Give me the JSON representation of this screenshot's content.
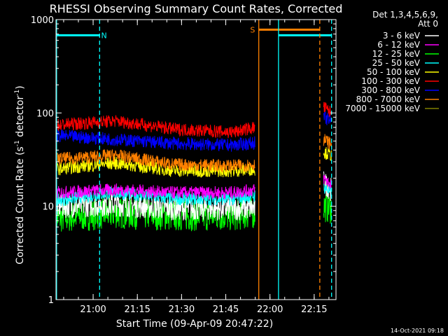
{
  "chart_data": {
    "type": "line",
    "title": "RHESSI Observing Summary Count Rates, Corrected",
    "xlabel": "Start Time (09-Apr-09 20:47:22)",
    "ylabel_main": "Corrected Count Rate (s",
    "ylabel_sup1": "-1",
    "ylabel_mid": " detector",
    "ylabel_sup2": "-1",
    "ylabel_end": ")",
    "y_scale": "log",
    "ylim": [
      1,
      1000
    ],
    "y_ticks": [
      {
        "value": 1,
        "label": "1"
      },
      {
        "value": 10,
        "label": "10"
      },
      {
        "value": 100,
        "label": "100"
      },
      {
        "value": 1000,
        "label": "1000"
      }
    ],
    "x_units": "minutes after 20:47:22",
    "xlim": [
      0,
      95
    ],
    "x_ticks": [
      {
        "value": 12.6,
        "label": "21:00"
      },
      {
        "value": 27.6,
        "label": "21:15"
      },
      {
        "value": 42.6,
        "label": "21:30"
      },
      {
        "value": 57.6,
        "label": "21:45"
      },
      {
        "value": 72.6,
        "label": "22:00"
      },
      {
        "value": 87.6,
        "label": "22:15"
      }
    ],
    "legend_title_line1": "Det 1,3,4,5,6,9,",
    "legend_title_line2": "Att 0",
    "legend_position": "top-right, outside plot",
    "series": [
      {
        "name": "3 - 6 keV",
        "color": "#ffffff",
        "segments": [
          {
            "x": [
              0,
              20,
              40,
              60,
              67.5
            ],
            "y": [
              10,
              10.5,
              9.5,
              9.5,
              9.5
            ]
          },
          {
            "x": [
              90.8,
              93.5
            ],
            "y": [
              18,
              15
            ]
          }
        ]
      },
      {
        "name": "6 - 12 keV",
        "color": "#ff00ff",
        "segments": [
          {
            "x": [
              0,
              20,
              40,
              60,
              67.5
            ],
            "y": [
              14,
              15,
              14,
              14,
              15
            ]
          },
          {
            "x": [
              90.8,
              93.5
            ],
            "y": [
              20,
              17
            ]
          }
        ]
      },
      {
        "name": "12 - 25 keV",
        "color": "#00ff00",
        "segments": [
          {
            "x": [
              0,
              20,
              40,
              60,
              67.5
            ],
            "y": [
              7.5,
              8.5,
              8,
              8,
              8.5
            ]
          },
          {
            "x": [
              90.8,
              93.5
            ],
            "y": [
              10,
              9.5
            ]
          }
        ]
      },
      {
        "name": "25 - 50 keV",
        "color": "#00ffff",
        "segments": [
          {
            "x": [
              0,
              20,
              40,
              60,
              67.5
            ],
            "y": [
              11.5,
              14,
              12,
              12,
              13
            ]
          },
          {
            "x": [
              90.8,
              93.5
            ],
            "y": [
              16,
              14
            ]
          }
        ]
      },
      {
        "name": "50 - 100 keV",
        "color": "#ffff00",
        "segments": [
          {
            "x": [
              0,
              20,
              40,
              60,
              67.5
            ],
            "y": [
              25,
              29,
              24,
              24,
              25
            ]
          },
          {
            "x": [
              90.8,
              93.5
            ],
            "y": [
              38,
              35
            ]
          }
        ]
      },
      {
        "name": "100 - 300 keV",
        "color": "#ff0000",
        "segments": [
          {
            "x": [
              0,
              20,
              40,
              60,
              67.5
            ],
            "y": [
              74,
              82,
              67,
              62,
              70
            ]
          },
          {
            "x": [
              90.8,
              93.5
            ],
            "y": [
              115,
              100
            ]
          }
        ]
      },
      {
        "name": "300 - 800 keV",
        "color": "#0000ff",
        "segments": [
          {
            "x": [
              0,
              20,
              40,
              60,
              67.5
            ],
            "y": [
              57,
              52,
              47,
              45,
              48
            ]
          },
          {
            "x": [
              90.8,
              93.5
            ],
            "y": [
              90,
              80
            ]
          }
        ]
      },
      {
        "name": "800 - 7000 keV",
        "color": "#ff8000",
        "segments": [
          {
            "x": [
              0,
              20,
              40,
              60,
              67.5
            ],
            "y": [
              32,
              35,
              28,
              27,
              28
            ]
          },
          {
            "x": [
              90.8,
              93.5
            ],
            "y": [
              52,
              46
            ]
          }
        ]
      },
      {
        "name": "7000 - 15000 keV",
        "color": "#808000",
        "segments": []
      }
    ],
    "attenuator_bars": [
      {
        "color": "#00ffff",
        "x": [
          0,
          14.8
        ],
        "y": 680
      },
      {
        "color": "#00ffff",
        "x": [
          75.5,
          93.5
        ],
        "y": 680
      },
      {
        "color": "#ff8000",
        "x": [
          68.8,
          89.5
        ],
        "y": 780
      }
    ],
    "vertical_lines": [
      {
        "x": 0.2,
        "color": "#00ffff",
        "style": "solid"
      },
      {
        "x": 14.8,
        "color": "#00ffff",
        "style": "dashed"
      },
      {
        "x": 68.8,
        "color": "#ff8000",
        "style": "solid"
      },
      {
        "x": 75.5,
        "color": "#00ffff",
        "style": "solid"
      },
      {
        "x": 89.5,
        "color": "#ff8000",
        "style": "dashed"
      },
      {
        "x": 93.5,
        "color": "#00ffff",
        "style": "dashed"
      }
    ],
    "annotations": [
      {
        "text": "N",
        "x": 16.3,
        "y": 680,
        "color": "#00ffff"
      },
      {
        "text": "S",
        "x": 66.7,
        "y": 780,
        "color": "#ff8000"
      }
    ],
    "timestamp": "14-Oct-2021 09:18"
  }
}
